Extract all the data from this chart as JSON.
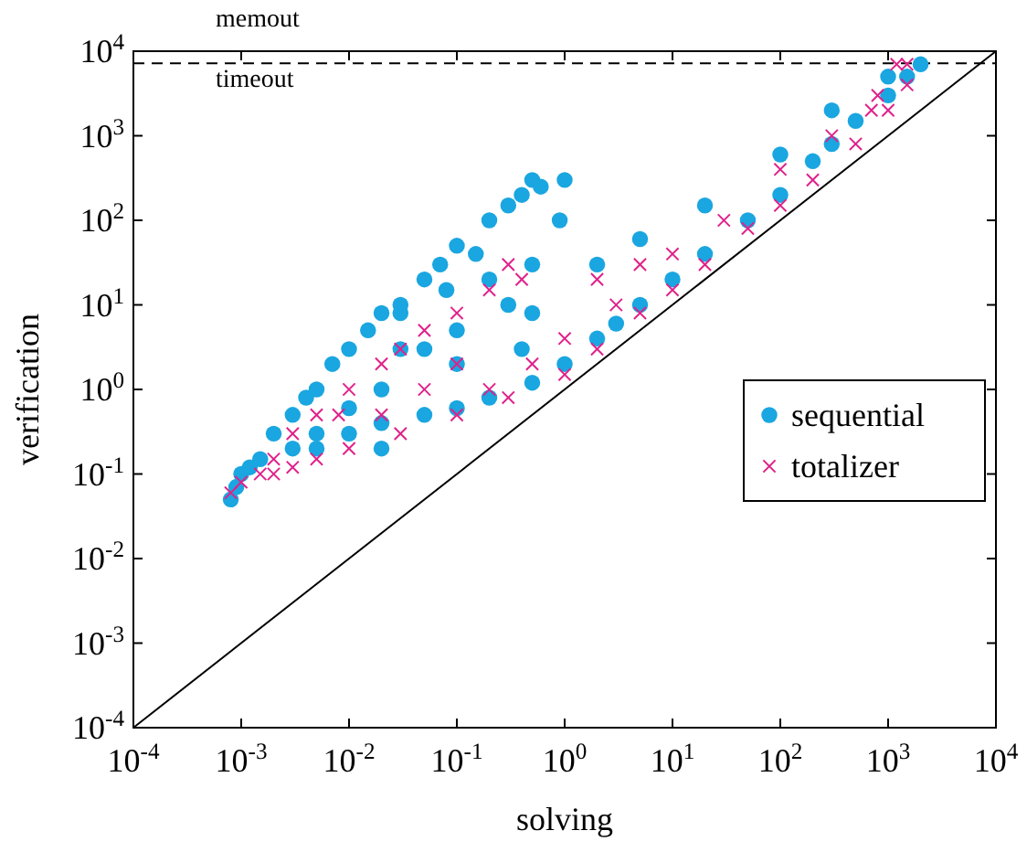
{
  "chart_data": {
    "type": "scatter",
    "xlabel": "solving",
    "ylabel": "verification",
    "log": "xy",
    "legend": "right",
    "xlim": [
      0.0001,
      10000
    ],
    "ylim": [
      0.0001,
      10000
    ],
    "xticks": [
      {
        "value": 0.0001,
        "label": "10$^{-4}$"
      },
      {
        "value": 0.001,
        "label": "10$^{-3}$"
      },
      {
        "value": 0.01,
        "label": "10$^{-2}$"
      },
      {
        "value": 0.1,
        "label": "10$^{-1}$"
      },
      {
        "value": 1,
        "label": "10$^{0}$"
      },
      {
        "value": 10,
        "label": "10$^{1}$"
      },
      {
        "value": 100,
        "label": "10$^{2}$"
      },
      {
        "value": 1000,
        "label": "10$^{3}$"
      },
      {
        "value": 10000,
        "label": "10$^{4}$"
      }
    ],
    "yticks": [
      {
        "value": 0.0001,
        "label": "10$^{-4}$"
      },
      {
        "value": 0.001,
        "label": "10$^{-3}$"
      },
      {
        "value": 0.01,
        "label": "10$^{-2}$"
      },
      {
        "value": 0.1,
        "label": "10$^{-1}$"
      },
      {
        "value": 1,
        "label": "10$^{0}$"
      },
      {
        "value": 10,
        "label": "10$^{1}$"
      },
      {
        "value": 100,
        "label": "10$^{2}$"
      },
      {
        "value": 1000,
        "label": "10$^{3}$"
      },
      {
        "value": 10000,
        "label": "10$^{4}$"
      }
    ],
    "ref_lines": [
      {
        "axis": "y",
        "value": 7200,
        "line_style": "dashed",
        "color": "#000000"
      }
    ],
    "annotations": [
      "memout",
      "timeout"
    ],
    "series": [
      {
        "type": "line",
        "color": "#000000",
        "marker": "none",
        "line_style": "solid",
        "x": [
          0.0001,
          10000
        ],
        "values": [
          0.0001,
          10000
        ]
      },
      {
        "name": "sequential",
        "color": "#1aa6e0",
        "marker": "circle",
        "x": [
          0.0008,
          0.0009,
          0.001,
          0.0012,
          0.0015,
          0.002,
          0.003,
          0.004,
          0.005,
          0.007,
          0.01,
          0.015,
          0.02,
          0.03,
          0.05,
          0.07,
          0.1,
          0.15,
          0.2,
          0.3,
          0.4,
          0.5,
          0.6,
          1,
          0.9,
          0.5,
          0.3,
          0.1,
          0.05,
          0.02,
          0.01,
          0.005,
          0.003,
          0.005,
          0.01,
          0.02,
          0.05,
          0.1,
          0.2,
          0.5,
          1,
          2,
          3,
          5,
          10,
          20,
          50,
          100,
          200,
          300,
          500,
          1000,
          1500,
          2000,
          0.03,
          0.08,
          0.2,
          2,
          5,
          20,
          100,
          300,
          1000,
          0.1,
          0.5,
          0.02,
          0.03,
          0.4
        ],
        "values": [
          0.05,
          0.07,
          0.1,
          0.12,
          0.15,
          0.3,
          0.5,
          0.8,
          1,
          2,
          3,
          5,
          8,
          10,
          20,
          30,
          50,
          40,
          100,
          150,
          200,
          300,
          250,
          300,
          100,
          30,
          10,
          5,
          3,
          1,
          0.6,
          0.3,
          0.2,
          0.2,
          0.3,
          0.4,
          0.5,
          0.6,
          0.8,
          1.2,
          2,
          4,
          6,
          10,
          20,
          40,
          100,
          200,
          500,
          800,
          1500,
          3000,
          5000,
          7000,
          8,
          15,
          20,
          30,
          60,
          150,
          600,
          2000,
          5000,
          2,
          8,
          0.2,
          3,
          3
        ]
      },
      {
        "name": "totalizer",
        "color": "#e0218a",
        "marker": "cross",
        "x": [
          0.0008,
          0.001,
          0.0015,
          0.002,
          0.003,
          0.005,
          0.01,
          0.02,
          0.03,
          0.05,
          0.1,
          0.2,
          0.3,
          0.4,
          0.02,
          0.05,
          0.1,
          0.01,
          0.03,
          0.1,
          0.3,
          1,
          2,
          5,
          10,
          20,
          50,
          100,
          200,
          500,
          1000,
          1500,
          1200,
          800,
          300,
          100,
          30,
          10,
          3,
          1,
          2,
          5,
          0.5,
          0.2,
          0.005,
          0.003,
          0.008,
          0.002,
          1500,
          700
        ],
        "values": [
          0.06,
          0.08,
          0.1,
          0.15,
          0.3,
          0.5,
          1,
          2,
          3,
          5,
          8,
          15,
          30,
          20,
          0.5,
          1,
          2,
          0.2,
          0.3,
          0.5,
          0.8,
          1.5,
          3,
          8,
          15,
          30,
          80,
          150,
          300,
          800,
          2000,
          4000,
          7000,
          3000,
          1000,
          400,
          100,
          40,
          10,
          4,
          20,
          30,
          2,
          1,
          0.15,
          0.12,
          0.5,
          0.1,
          7000,
          2000
        ]
      }
    ]
  }
}
